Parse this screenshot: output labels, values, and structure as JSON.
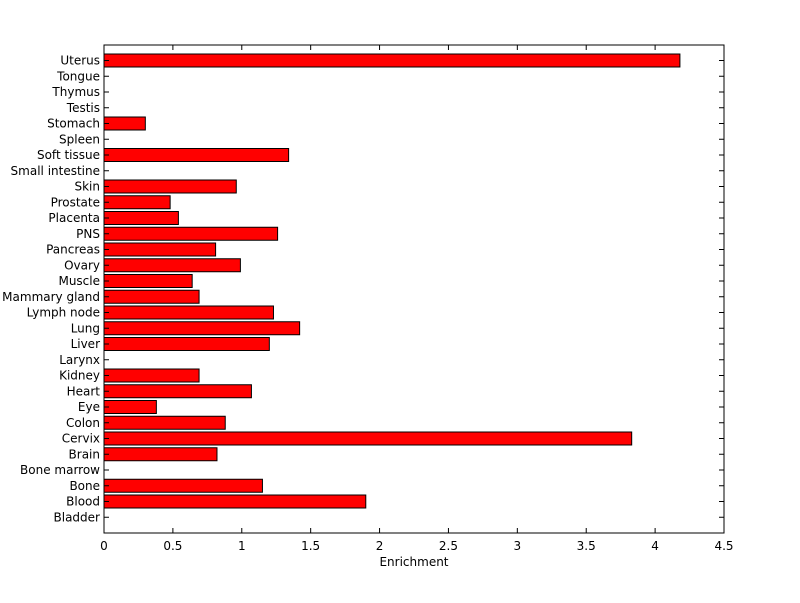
{
  "chart_data": {
    "type": "bar",
    "orientation": "horizontal",
    "title": "",
    "xlabel": "Enrichment",
    "ylabel": "",
    "xlim": [
      0,
      4.5
    ],
    "xticks": [
      "0",
      "0.5",
      "1",
      "1.5",
      "2",
      "2.5",
      "3",
      "3.5",
      "4",
      "4.5"
    ],
    "bar_color": "#ff0000",
    "bar_edge_color": "#000000",
    "grid": false,
    "categories": [
      "Uterus",
      "Tongue",
      "Thymus",
      "Testis",
      "Stomach",
      "Spleen",
      "Soft tissue",
      "Small intestine",
      "Skin",
      "Prostate",
      "Placenta",
      "PNS",
      "Pancreas",
      "Ovary",
      "Muscle",
      "Mammary gland",
      "Lymph node",
      "Lung",
      "Liver",
      "Larynx",
      "Kidney",
      "Heart",
      "Eye",
      "Colon",
      "Cervix",
      "Brain",
      "Bone marrow",
      "Bone",
      "Blood",
      "Bladder"
    ],
    "values": [
      4.18,
      0,
      0,
      0,
      0.3,
      0,
      1.34,
      0,
      0.96,
      0.48,
      0.54,
      1.26,
      0.81,
      0.99,
      0.64,
      0.69,
      1.23,
      1.42,
      1.2,
      0,
      0.69,
      1.07,
      0.38,
      0.88,
      3.83,
      0.82,
      0,
      1.15,
      1.9,
      0
    ]
  }
}
